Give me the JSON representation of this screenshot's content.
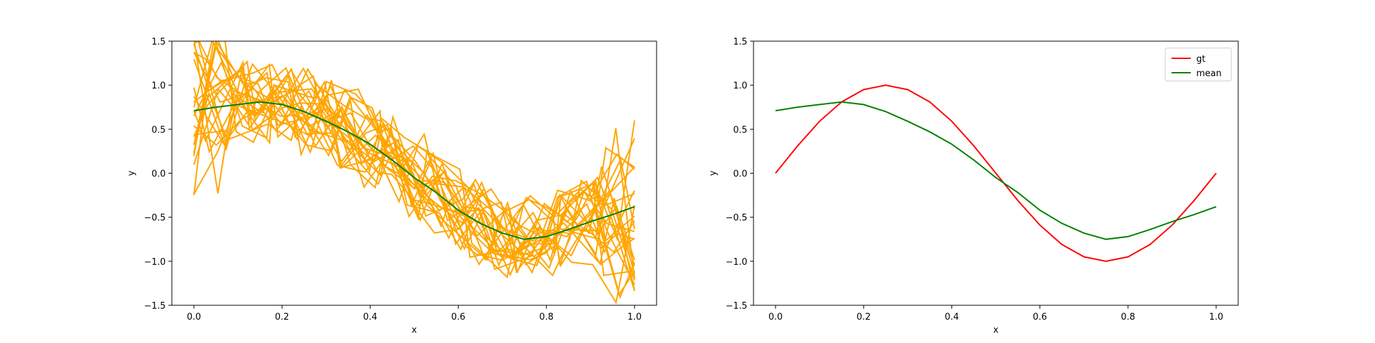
{
  "chart_data": [
    {
      "type": "line",
      "xlabel": "x",
      "ylabel": "y",
      "xlim": [
        -0.05,
        1.05
      ],
      "ylim": [
        -1.5,
        1.5
      ],
      "xticks": [
        "0.0",
        "0.2",
        "0.4",
        "0.6",
        "0.8",
        "1.0"
      ],
      "yticks": [
        "−1.5",
        "−1.0",
        "−0.5",
        "0.0",
        "0.5",
        "1.0",
        "1.5"
      ],
      "grid": false,
      "legend": null,
      "colors": {
        "samples": "#ffa500",
        "mean": "#008000"
      },
      "sample_count": 25,
      "mean_series": {
        "x": [
          0.0,
          0.05,
          0.1,
          0.15,
          0.2,
          0.25,
          0.3,
          0.35,
          0.4,
          0.45,
          0.5,
          0.55,
          0.6,
          0.65,
          0.7,
          0.75,
          0.8,
          0.85,
          0.9,
          0.95,
          1.0
        ],
        "y": [
          0.71,
          0.75,
          0.78,
          0.81,
          0.78,
          0.7,
          0.59,
          0.47,
          0.33,
          0.15,
          -0.05,
          -0.22,
          -0.42,
          -0.57,
          -0.68,
          -0.75,
          -0.72,
          -0.64,
          -0.55,
          -0.47,
          -0.38
        ]
      }
    },
    {
      "type": "line",
      "xlabel": "x",
      "ylabel": "y",
      "xlim": [
        -0.05,
        1.05
      ],
      "ylim": [
        -1.5,
        1.5
      ],
      "xticks": [
        "0.0",
        "0.2",
        "0.4",
        "0.6",
        "0.8",
        "1.0"
      ],
      "yticks": [
        "−1.5",
        "−1.0",
        "−0.5",
        "0.0",
        "0.5",
        "1.0",
        "1.5"
      ],
      "grid": false,
      "legend": "top-right",
      "series": [
        {
          "name": "gt",
          "color": "#ff0000",
          "x": [
            0.0,
            0.05,
            0.1,
            0.15,
            0.2,
            0.25,
            0.3,
            0.35,
            0.4,
            0.45,
            0.5,
            0.55,
            0.6,
            0.65,
            0.7,
            0.75,
            0.8,
            0.85,
            0.9,
            0.95,
            1.0
          ],
          "y": [
            0.0,
            0.31,
            0.59,
            0.81,
            0.95,
            1.0,
            0.95,
            0.81,
            0.59,
            0.31,
            0.0,
            -0.31,
            -0.59,
            -0.81,
            -0.95,
            -1.0,
            -0.95,
            -0.81,
            -0.59,
            -0.31,
            0.0
          ]
        },
        {
          "name": "mean",
          "color": "#008000",
          "x": [
            0.0,
            0.05,
            0.1,
            0.15,
            0.2,
            0.25,
            0.3,
            0.35,
            0.4,
            0.45,
            0.5,
            0.55,
            0.6,
            0.65,
            0.7,
            0.75,
            0.8,
            0.85,
            0.9,
            0.95,
            1.0
          ],
          "y": [
            0.71,
            0.75,
            0.78,
            0.81,
            0.78,
            0.7,
            0.59,
            0.47,
            0.33,
            0.15,
            -0.05,
            -0.22,
            -0.42,
            -0.57,
            -0.68,
            -0.75,
            -0.72,
            -0.64,
            -0.55,
            -0.47,
            -0.38
          ]
        }
      ]
    }
  ]
}
